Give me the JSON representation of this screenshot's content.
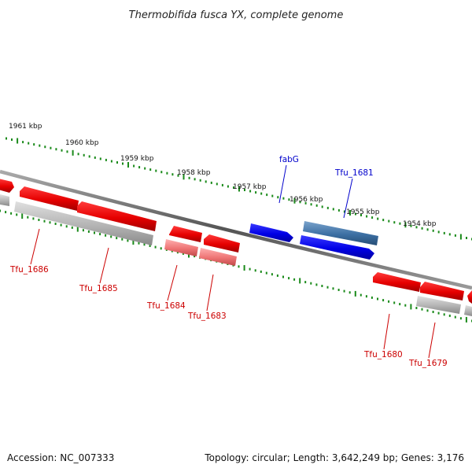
{
  "title": "Thermobifida fusca YX, complete genome",
  "footer": {
    "accession": "Accession: NC_007333",
    "summary": "Topology: circular; Length: 3,642,249 bp; Genes: 3,176"
  },
  "tick_labels": [
    "1961 kbp",
    "1960 kbp",
    "1959 kbp",
    "1958 kbp",
    "1957 kbp",
    "1956 kbp",
    "1955 kbp",
    "1954 kbp"
  ],
  "genes_labeled": [
    {
      "name": "fabG",
      "color": "#0000cc"
    },
    {
      "name": "Tfu_1681",
      "color": "#0000cc"
    },
    {
      "name": "Tfu_1686",
      "color": "#cc0000"
    },
    {
      "name": "Tfu_1685",
      "color": "#cc0000"
    },
    {
      "name": "Tfu_1684",
      "color": "#cc0000"
    },
    {
      "name": "Tfu_1683",
      "color": "#cc0000"
    },
    {
      "name": "Tfu_1680",
      "color": "#cc0000"
    },
    {
      "name": "Tfu_1679",
      "color": "#cc0000"
    }
  ],
  "colors": {
    "backbone": "#6e6e6e",
    "tick": "#1a8a1a",
    "gene_red": "#ee0000",
    "gene_blue": "#0a0ae6",
    "gene_steel": "#3f76ad",
    "gene_gray": "#b4b4b4",
    "gene_pink": "#ee7777"
  }
}
